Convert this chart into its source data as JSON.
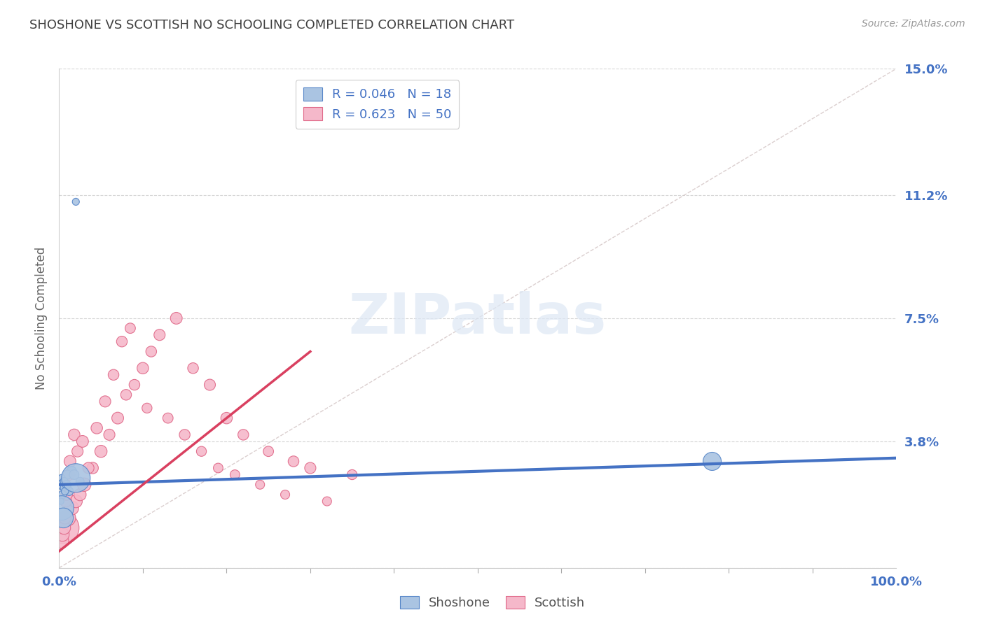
{
  "title": "SHOSHONE VS SCOTTISH NO SCHOOLING COMPLETED CORRELATION CHART",
  "source_text": "Source: ZipAtlas.com",
  "ylabel": "No Schooling Completed",
  "xlim": [
    0,
    100
  ],
  "ylim": [
    0,
    15
  ],
  "yticks": [
    0,
    3.8,
    7.5,
    11.2,
    15.0
  ],
  "ytick_labels": [
    "",
    "3.8%",
    "7.5%",
    "11.2%",
    "15.0%"
  ],
  "xtick_labels": [
    "0.0%",
    "100.0%"
  ],
  "watermark": "ZIPatlas",
  "legend_blue_label": "R = 0.046   N = 18",
  "legend_pink_label": "R = 0.623   N = 50",
  "shoshone_color": "#aac4e2",
  "scottish_color": "#f5b8ca",
  "shoshone_edge_color": "#5585c8",
  "scottish_edge_color": "#e06888",
  "shoshone_line_color": "#4472c4",
  "scottish_line_color": "#d94060",
  "title_color": "#404040",
  "axis_label_color": "#4472c4",
  "grid_color": "#cccccc",
  "background_color": "#ffffff",
  "shoshone_x": [
    2.0,
    1.5,
    2.5,
    1.0,
    0.5,
    0.8,
    1.2,
    0.3,
    0.6,
    0.4,
    1.8,
    0.2,
    0.9,
    0.7,
    0.3,
    0.5,
    78.0,
    2.0
  ],
  "shoshone_y": [
    11.0,
    2.9,
    2.6,
    2.8,
    2.5,
    2.4,
    2.3,
    2.7,
    2.6,
    2.2,
    2.8,
    2.0,
    2.5,
    2.3,
    1.8,
    1.5,
    3.2,
    2.7
  ],
  "shoshone_sizes": [
    15,
    30,
    20,
    25,
    40,
    35,
    22,
    15,
    18,
    20,
    28,
    12,
    22,
    16,
    180,
    120,
    100,
    250
  ],
  "scottish_x": [
    0.5,
    1.0,
    1.5,
    2.0,
    2.5,
    3.0,
    4.0,
    5.0,
    6.0,
    7.0,
    8.0,
    10.0,
    11.0,
    12.0,
    14.0,
    16.0,
    18.0,
    20.0,
    22.0,
    25.0,
    28.0,
    30.0,
    35.0,
    0.3,
    0.4,
    0.6,
    0.7,
    0.8,
    0.9,
    1.2,
    1.3,
    1.8,
    2.2,
    2.8,
    3.5,
    4.5,
    5.5,
    6.5,
    7.5,
    8.5,
    9.0,
    10.5,
    13.0,
    15.0,
    17.0,
    19.0,
    21.0,
    24.0,
    27.0,
    32.0
  ],
  "scottish_y": [
    1.2,
    1.5,
    1.8,
    2.0,
    2.2,
    2.5,
    3.0,
    3.5,
    4.0,
    4.5,
    5.2,
    6.0,
    6.5,
    7.0,
    7.5,
    6.0,
    5.5,
    4.5,
    4.0,
    3.5,
    3.2,
    3.0,
    2.8,
    0.8,
    1.0,
    1.2,
    1.5,
    2.0,
    2.2,
    2.8,
    3.2,
    4.0,
    3.5,
    3.8,
    3.0,
    4.2,
    5.0,
    5.8,
    6.8,
    7.2,
    5.5,
    4.8,
    4.5,
    4.0,
    3.5,
    3.0,
    2.8,
    2.5,
    2.2,
    2.0
  ],
  "scottish_sizes": [
    300,
    80,
    60,
    50,
    45,
    55,
    40,
    45,
    38,
    42,
    35,
    40,
    35,
    38,
    42,
    35,
    38,
    40,
    35,
    32,
    35,
    38,
    30,
    60,
    55,
    50,
    45,
    42,
    40,
    38,
    42,
    40,
    38,
    42,
    38,
    40,
    38,
    35,
    35,
    32,
    35,
    30,
    32,
    35,
    30,
    28,
    28,
    25,
    25,
    25
  ],
  "shoshone_line_x": [
    0,
    100
  ],
  "shoshone_line_y": [
    2.5,
    3.3
  ],
  "scottish_line_x": [
    0,
    30
  ],
  "scottish_line_y": [
    0.5,
    6.5
  ],
  "diag_line_x": [
    0,
    100
  ],
  "diag_line_y": [
    0,
    15
  ]
}
